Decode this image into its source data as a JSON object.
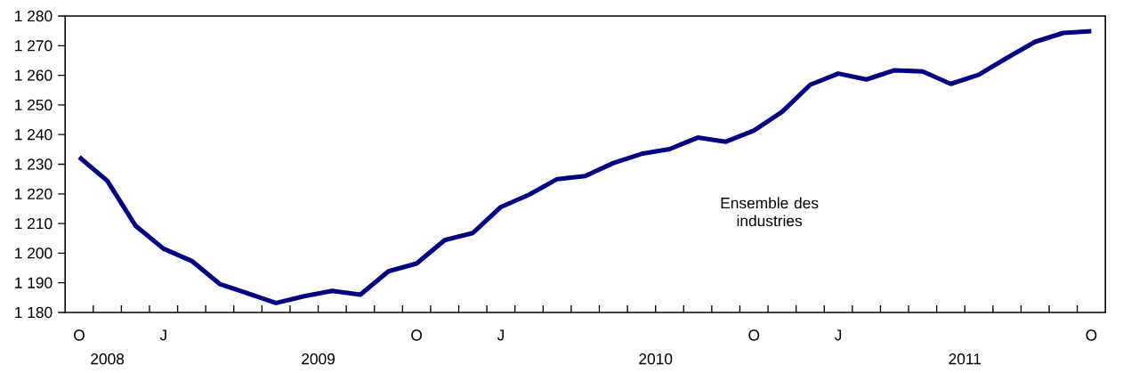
{
  "chart_data": {
    "type": "line",
    "categories": [
      "O",
      null,
      null,
      "J",
      null,
      null,
      null,
      null,
      null,
      null,
      null,
      null,
      "O",
      null,
      null,
      "J",
      null,
      null,
      null,
      null,
      null,
      null,
      null,
      null,
      "O",
      null,
      null,
      "J",
      null,
      null,
      null,
      null,
      null,
      null,
      null,
      null,
      "O"
    ],
    "series": [
      {
        "name": "Ensemble des industries",
        "color": "#000080",
        "values": [
          1232.4,
          1224.4,
          1209.3,
          1201.5,
          1197.4,
          1189.6,
          1186.4,
          1183.2,
          1185.5,
          1187.3,
          1186.0,
          1193.9,
          1196.5,
          1204.4,
          1206.8,
          1215.6,
          1219.7,
          1225.0,
          1226.0,
          1230.4,
          1233.5,
          1235.1,
          1239.0,
          1237.6,
          1241.4,
          1247.7,
          1256.8,
          1260.6,
          1258.6,
          1261.7,
          1261.3,
          1257.1,
          1260.2,
          1265.9,
          1271.3,
          1274.3,
          1274.9
        ]
      }
    ],
    "ylim": [
      1180,
      1280
    ],
    "yticks": [
      {
        "value": 1180,
        "label": "1 180"
      },
      {
        "value": 1190,
        "label": "1 190"
      },
      {
        "value": 1200,
        "label": "1 200"
      },
      {
        "value": 1210,
        "label": "1 210"
      },
      {
        "value": 1220,
        "label": "1 220"
      },
      {
        "value": 1230,
        "label": "1 230"
      },
      {
        "value": 1240,
        "label": "1 240"
      },
      {
        "value": 1250,
        "label": "1 250"
      },
      {
        "value": 1260,
        "label": "1 260"
      },
      {
        "value": 1270,
        "label": "1 270"
      },
      {
        "value": 1280,
        "label": "1 280"
      }
    ],
    "annotations": [
      "2008",
      "2009",
      "2010",
      "2011"
    ]
  }
}
